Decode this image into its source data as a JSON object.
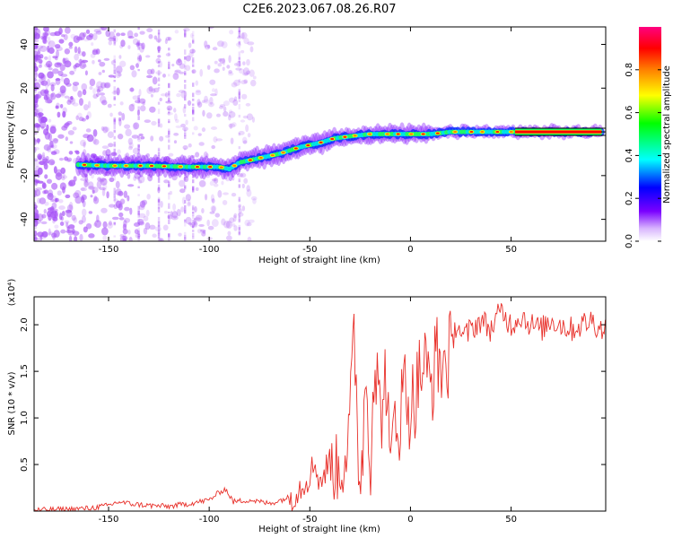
{
  "title": "C2E6.2023.067.08.26.R07",
  "colors": {
    "snr_line": "#e8302a",
    "spectrogram_sparse": "#a855f7"
  },
  "chart_data": [
    {
      "type": "heatmap",
      "xlabel": "Height of straight line (km)",
      "ylabel": "Frequency (Hz)",
      "xlim": [
        -187,
        97
      ],
      "ylim": [
        -50,
        48
      ],
      "x_ticks": [
        -150,
        -100,
        -50,
        0,
        50
      ],
      "y_ticks": [
        -40,
        -20,
        0,
        20,
        40
      ],
      "colorbar": {
        "label": "Normalized spectral amplitude",
        "range": [
          0,
          1
        ],
        "ticks": [
          "0.0",
          "0.2",
          "0.4",
          "0.6",
          "0.8"
        ],
        "colormap": [
          "#ffffff",
          "#7a00ff",
          "#0000ff",
          "#00ffff",
          "#00ff00",
          "#ffff00",
          "#ff8000",
          "#ff0000",
          "#ff0080"
        ]
      },
      "ridge": {
        "x": [
          -165,
          -150,
          -130,
          -110,
          -95,
          -90,
          -85,
          -75,
          -65,
          -55,
          -45,
          -38,
          -30,
          -20,
          -10,
          0,
          10,
          20,
          30,
          50,
          70,
          95
        ],
        "y": [
          -15,
          -15.5,
          -15.5,
          -16,
          -16,
          -17,
          -14,
          -12,
          -10,
          -7,
          -5,
          -3,
          -2,
          -1,
          -1,
          -1,
          -1,
          0,
          0,
          0,
          0,
          0
        ]
      }
    },
    {
      "type": "line",
      "xlabel": "Height of straight line (km)",
      "ylabel": "SNR (10 * v/v)",
      "multiplier": "(x10⁴)",
      "xlim": [
        -187,
        97
      ],
      "ylim": [
        0,
        2.3
      ],
      "x_ticks": [
        -150,
        -100,
        -50,
        0,
        50
      ],
      "y_ticks": [
        "0.5",
        "1.0",
        "1.5",
        "2.0"
      ],
      "series": [
        {
          "x": [
            -187,
            -170,
            -160,
            -150,
            -145,
            -140,
            -130,
            -120,
            -110,
            -100,
            -95,
            -92,
            -88,
            -80,
            -70,
            -60,
            -55,
            -50,
            -47,
            -45,
            -40,
            -35,
            -30,
            -28,
            -25,
            -22,
            -20,
            -18,
            -15,
            -12,
            -10,
            -8,
            -5,
            -3,
            0,
            3,
            6,
            10,
            13,
            16,
            20,
            23,
            26,
            30,
            35,
            40,
            45,
            50,
            55,
            60,
            65,
            70,
            75,
            80,
            85,
            90,
            95
          ],
          "y": [
            0.01,
            0.02,
            0.03,
            0.06,
            0.1,
            0.08,
            0.06,
            0.05,
            0.08,
            0.12,
            0.2,
            0.24,
            0.1,
            0.12,
            0.08,
            0.15,
            0.25,
            0.4,
            0.52,
            0.3,
            0.55,
            0.4,
            0.9,
            1.88,
            0.2,
            1.5,
            0.5,
            1.7,
            1.0,
            1.5,
            0.3,
            1.1,
            1.0,
            1.4,
            1.1,
            1.3,
            1.6,
            1.35,
            1.65,
            1.55,
            1.7,
            2.05,
            1.85,
            1.95,
            2.05,
            1.95,
            2.15,
            2.0,
            2.1,
            2.0,
            1.95,
            2.05,
            2.0,
            1.95,
            2.0,
            2.05,
            1.95
          ]
        }
      ]
    }
  ]
}
